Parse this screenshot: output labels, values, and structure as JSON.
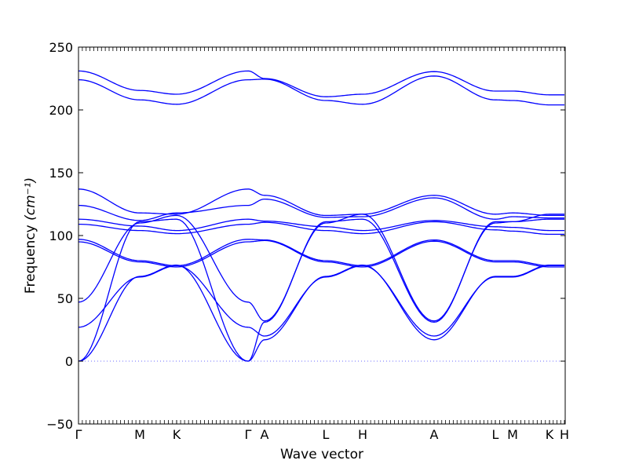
{
  "chart_data": {
    "type": "line",
    "title": "",
    "xlabel": "Wave vector",
    "ylabel": "Frequency",
    "ylabel_unit": "cm⁻¹",
    "ylim": [
      -50,
      250
    ],
    "yticks": [
      -50,
      0,
      50,
      100,
      150,
      200,
      250
    ],
    "xlim": [
      0,
      3.1
    ],
    "high_symmetry_points": [
      {
        "label": "Γ",
        "x": 0.0
      },
      {
        "label": "M",
        "x": 0.39
      },
      {
        "label": "K",
        "x": 0.625
      },
      {
        "label": "Γ",
        "x": 1.08
      },
      {
        "label": "A",
        "x": 1.185
      },
      {
        "label": "L",
        "x": 1.575
      },
      {
        "label": "H",
        "x": 1.81
      },
      {
        "label": "A",
        "x": 2.265
      },
      {
        "label": "L",
        "x": 2.655
      },
      {
        "label": "M",
        "x": 2.765
      },
      {
        "label": "K",
        "x": 3.0
      },
      {
        "label": "H",
        "x": 3.095
      }
    ],
    "zero_line": true,
    "line_color": "#0000ff",
    "zero_line_color": "#6b6bff",
    "series": [
      {
        "x": [
          0,
          0.39,
          0.625,
          1.08,
          1.185,
          1.575,
          1.81,
          2.265,
          2.655,
          2.765,
          3.0,
          3.095
        ],
        "y": [
          231,
          215.5,
          212.5,
          231,
          225,
          210.5,
          212.5,
          230.5,
          215,
          215,
          212,
          212
        ]
      },
      {
        "x": [
          0,
          0.39,
          0.625,
          1.08,
          1.185,
          1.575,
          1.81,
          2.265,
          2.655,
          2.765,
          3.0,
          3.095
        ],
        "y": [
          224,
          208,
          204.5,
          224,
          224.5,
          207.5,
          204.5,
          227,
          208,
          207.5,
          204,
          204
        ]
      },
      {
        "x": [
          0,
          0.39,
          0.625,
          1.08,
          1.185,
          1.575,
          1.81,
          2.265,
          2.655,
          2.765,
          3.0,
          3.095
        ],
        "y": [
          137,
          118,
          117,
          137,
          132,
          116,
          117,
          132,
          117,
          118,
          116,
          116
        ]
      },
      {
        "x": [
          0,
          0.39,
          0.625,
          1.08,
          1.185,
          1.575,
          1.81,
          2.265,
          2.655,
          2.765,
          3.0,
          3.095
        ],
        "y": [
          124,
          112,
          118,
          124,
          129,
          114.5,
          115,
          130,
          113,
          115,
          114,
          114
        ]
      },
      {
        "x": [
          0,
          0.39,
          0.625,
          1.08,
          1.185,
          1.575,
          1.81,
          2.265,
          2.655,
          2.765,
          3.0,
          3.095
        ],
        "y": [
          113,
          107.5,
          104,
          113,
          111.5,
          107,
          104,
          112,
          107,
          106.5,
          104,
          104
        ]
      },
      {
        "x": [
          0,
          0.39,
          0.625,
          1.08,
          1.185,
          1.575,
          1.81,
          2.265,
          2.655,
          2.765,
          3.0,
          3.095
        ],
        "y": [
          109,
          104,
          101.5,
          109,
          110.5,
          104,
          101.5,
          111,
          104.5,
          103.5,
          101,
          101
        ]
      },
      {
        "x": [
          0,
          0.39,
          0.625,
          1.08,
          1.185,
          1.575,
          1.81,
          2.265,
          2.655,
          2.765,
          3.0,
          3.095
        ],
        "y": [
          97,
          80,
          76,
          97,
          96.5,
          80,
          76,
          96.5,
          80,
          80,
          76,
          76
        ]
      },
      {
        "x": [
          0,
          0.39,
          0.625,
          1.08,
          1.185,
          1.575,
          1.81,
          2.265,
          2.655,
          2.765,
          3.0,
          3.095
        ],
        "y": [
          95,
          79,
          75,
          95,
          96,
          79,
          75,
          95.5,
          79,
          79,
          75,
          75
        ]
      },
      {
        "x": [
          0,
          0.39,
          0.625,
          1.08,
          1.185,
          1.575,
          1.81,
          2.265,
          2.655,
          2.765,
          3.0,
          3.095
        ],
        "y": [
          47,
          110,
          116,
          47,
          32,
          110,
          117,
          32,
          110,
          111,
          117,
          117
        ]
      },
      {
        "x": [
          0,
          0.39,
          0.625,
          1.08,
          1.185,
          1.575,
          1.81,
          2.265,
          2.655,
          2.765,
          3.0,
          3.095
        ],
        "y": [
          27,
          67,
          76,
          27,
          20,
          67,
          76,
          20,
          67,
          67,
          76,
          76
        ]
      },
      {
        "x": [
          0,
          0.39,
          0.625,
          1.08,
          1.185,
          1.575,
          1.81,
          2.265,
          2.655,
          2.765,
          3.0,
          3.095
        ],
        "y": [
          0,
          67.5,
          76.5,
          0,
          17,
          67.5,
          76.5,
          17,
          67.5,
          67.5,
          76.5,
          76.5
        ]
      },
      {
        "x": [
          0,
          0.39,
          0.625,
          1.08,
          1.185,
          1.575,
          1.81,
          2.265,
          2.655,
          2.765,
          3.0,
          3.095
        ],
        "y": [
          0,
          111,
          113,
          0,
          31,
          111,
          113,
          31,
          111,
          111,
          113,
          113
        ]
      }
    ]
  }
}
